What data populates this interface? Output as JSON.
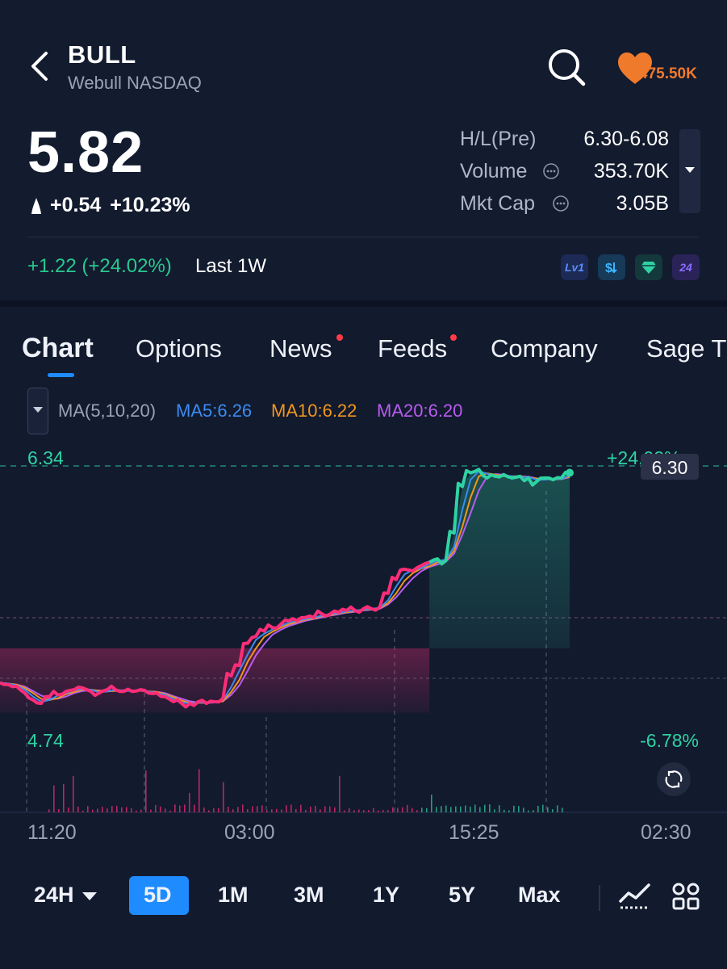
{
  "header": {
    "symbol": "BULL",
    "exchange": "Webull NASDAQ",
    "watchlist_count": "475.50K"
  },
  "quote": {
    "price": "5.82",
    "change": "+0.54",
    "change_pct": "+10.23%",
    "stats": [
      {
        "label": "H/L(Pre)",
        "value": "6.30-6.08",
        "has_info": false
      },
      {
        "label": "Volume",
        "value": "353.70K",
        "has_info": true
      },
      {
        "label": "Mkt Cap",
        "value": "3.05B",
        "has_info": true
      }
    ],
    "week_change": "+1.22 (+24.02%)",
    "week_label": "Last 1W",
    "badges": [
      "Lv1",
      "$",
      "gem",
      "24"
    ]
  },
  "tabs": [
    {
      "label": "Chart",
      "active": true,
      "dot": false
    },
    {
      "label": "Options",
      "active": false,
      "dot": false
    },
    {
      "label": "News",
      "active": false,
      "dot": true
    },
    {
      "label": "Feeds",
      "active": false,
      "dot": true
    },
    {
      "label": "Company",
      "active": false,
      "dot": false
    },
    {
      "label": "Sage T",
      "active": false,
      "dot": false
    }
  ],
  "ma": {
    "label": "MA(5,10,20)",
    "ma5": "MA5:6.26",
    "ma10": "MA10:6.22",
    "ma20": "MA20:6.20",
    "colors": {
      "ma5": "#3a8cf0",
      "ma10": "#f0961e",
      "ma20": "#b85cf0"
    }
  },
  "chart_data": {
    "type": "line",
    "high_label": "6.34",
    "low_label": "4.74",
    "high_pct": "+24.02%",
    "low_pct": "-6.78%",
    "current_price_tag": "6.30",
    "x_ticks": [
      "11:20",
      "03:00",
      "15:25",
      "02:30"
    ],
    "ylim": [
      4.74,
      6.34
    ],
    "prev_close": 5.28,
    "colors": {
      "down": "#ff2d78",
      "up": "#2ed3a3",
      "ma5": "#3a8cf0",
      "ma10": "#f0961e",
      "ma20": "#b85cf0"
    },
    "price_series": [
      5.08,
      5.07,
      5.06,
      5.02,
      4.98,
      4.96,
      5.0,
      5.01,
      5.03,
      5.04,
      5.05,
      5.03,
      5.02,
      5.04,
      5.04,
      5.03,
      5.03,
      5.04,
      5.02,
      5.02,
      5.0,
      4.97,
      4.96,
      4.96,
      4.97,
      4.96,
      4.97,
      4.99,
      5.12,
      5.18,
      5.31,
      5.35,
      5.38,
      5.4,
      5.42,
      5.44,
      5.44,
      5.46,
      5.46,
      5.48,
      5.48,
      5.49,
      5.5,
      5.5,
      5.51,
      5.51,
      5.52,
      5.6,
      5.68,
      5.74,
      5.73,
      5.76,
      5.78,
      5.8,
      5.79,
      5.95,
      6.22,
      6.3,
      6.32,
      6.27,
      6.28,
      6.29,
      6.27,
      6.28,
      6.27,
      6.25,
      6.27,
      6.26,
      6.27,
      6.3
    ]
  },
  "controls": {
    "range_select": "24H",
    "ranges": [
      "5D",
      "1M",
      "3M",
      "1Y",
      "5Y",
      "Max"
    ],
    "active_range": "5D"
  }
}
